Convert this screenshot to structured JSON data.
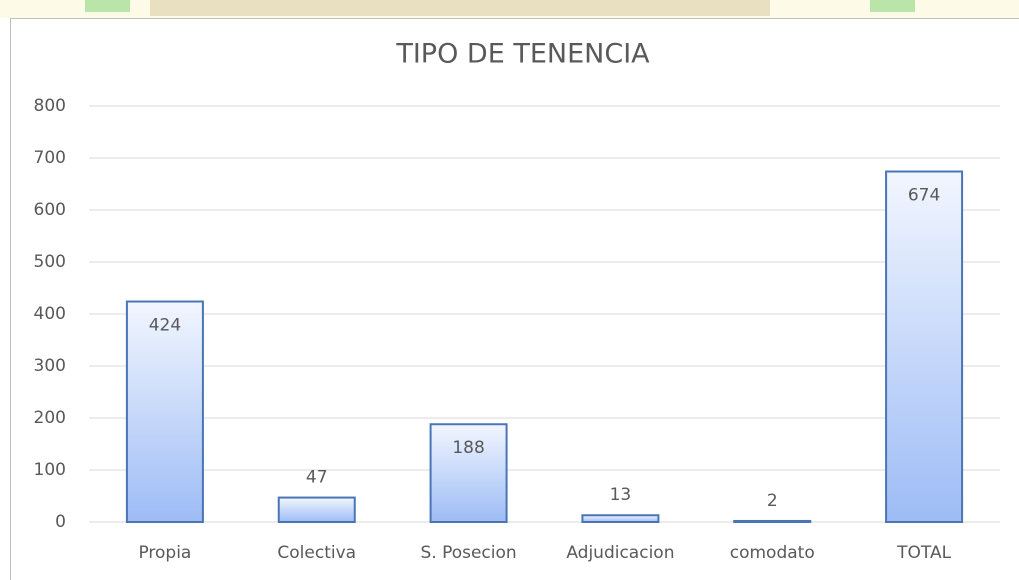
{
  "chart_data": {
    "type": "bar",
    "title": "TIPO DE TENENCIA",
    "categories": [
      "Propia",
      "Colectiva",
      "S. Posecion",
      "Adjudicacion",
      "comodato",
      "TOTAL"
    ],
    "values": [
      424,
      47,
      188,
      13,
      2,
      674
    ],
    "color": "#4a75b5",
    "ylim": [
      0,
      800
    ],
    "yticks": [
      0,
      100,
      200,
      300,
      400,
      500,
      600,
      700,
      800
    ],
    "grid": true
  }
}
